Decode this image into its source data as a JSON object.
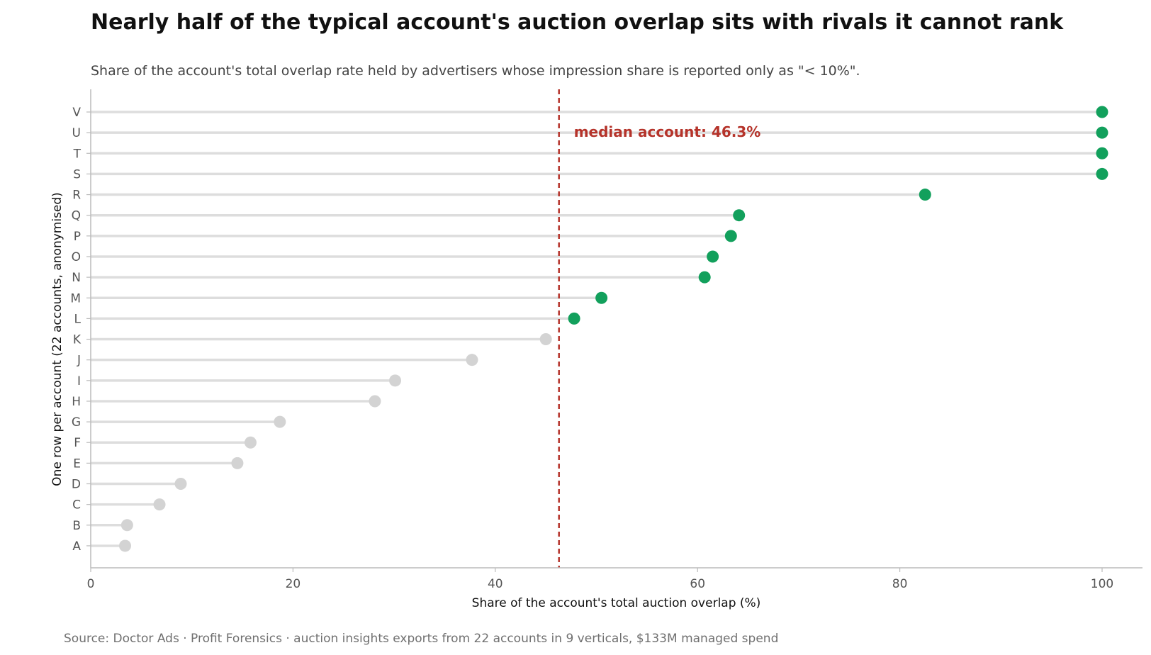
{
  "colors": {
    "above_median": "#12a05c",
    "below_median": "#d3d3d3",
    "stem": "#dddddd",
    "median_line": "#b5332a",
    "axis": "#bbbbbb"
  },
  "source": "Source: Doctor Ads · Profit Forensics · auction insights exports from 22 accounts in 9 verticals, $133M managed spend",
  "chart_data": {
    "type": "lollipop",
    "title": "Nearly half of the typical account's auction overlap sits with rivals it cannot rank",
    "subtitle": "Share of the account's total overlap rate held by advertisers whose impression share is reported only as \"< 10%\".",
    "xlabel": "Share of the account's total auction overlap (%)",
    "ylabel": "One row per account (22 accounts, anonymised)",
    "xlim": [
      0,
      104
    ],
    "xticks": [
      0,
      20,
      40,
      60,
      80,
      100
    ],
    "grid": false,
    "categories": [
      "A",
      "B",
      "C",
      "D",
      "E",
      "F",
      "G",
      "H",
      "I",
      "J",
      "K",
      "L",
      "M",
      "N",
      "O",
      "P",
      "Q",
      "R",
      "S",
      "T",
      "U",
      "V"
    ],
    "values": [
      3.4,
      3.6,
      6.8,
      8.9,
      14.5,
      15.8,
      18.7,
      28.1,
      30.1,
      37.7,
      45.0,
      47.8,
      50.5,
      60.7,
      61.5,
      63.3,
      64.1,
      82.5,
      100,
      100,
      100,
      100
    ],
    "median": 46.3,
    "median_label": "median account: 46.3%"
  }
}
